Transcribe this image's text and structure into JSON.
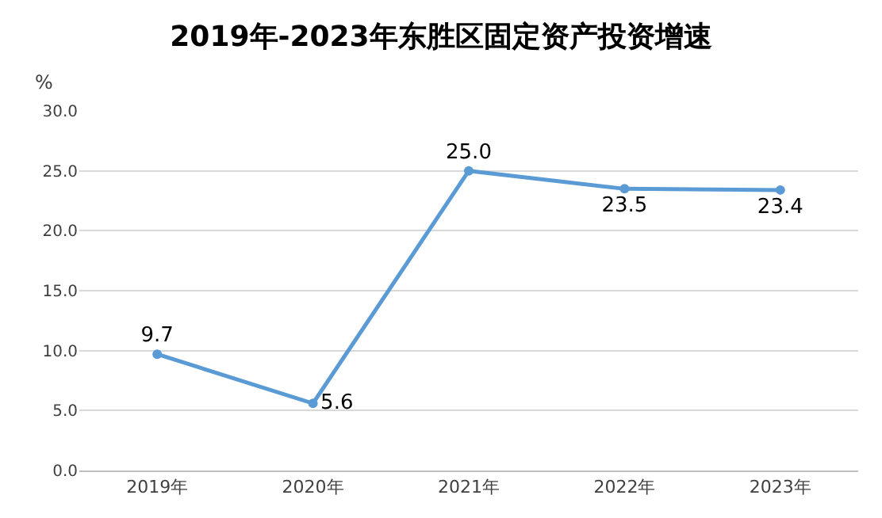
{
  "chart_data": {
    "type": "line",
    "title": "2019年-2023年东胜区固定资产投资增速",
    "ylabel": "%",
    "categories": [
      "2019年",
      "2020年",
      "2021年",
      "2022年",
      "2023年"
    ],
    "series": [
      {
        "color": "#5b9bd5",
        "values": [
          9.7,
          5.6,
          25.0,
          23.5,
          23.4
        ],
        "value_labels": [
          "9.7",
          "5.6",
          "25.0",
          "23.5",
          "23.4"
        ]
      }
    ],
    "ylim": [
      0,
      30
    ],
    "yticks": [
      {
        "value": 0,
        "label": "0.0"
      },
      {
        "value": 5,
        "label": "5.0"
      },
      {
        "value": 10,
        "label": "10.0"
      },
      {
        "value": 15,
        "label": "15.0"
      },
      {
        "value": 20,
        "label": "20.0"
      },
      {
        "value": 25,
        "label": "25.0"
      },
      {
        "value": 30,
        "label": "30.0"
      }
    ],
    "grid": "y",
    "marker": "circle",
    "line_style": "solid",
    "legend": false
  }
}
